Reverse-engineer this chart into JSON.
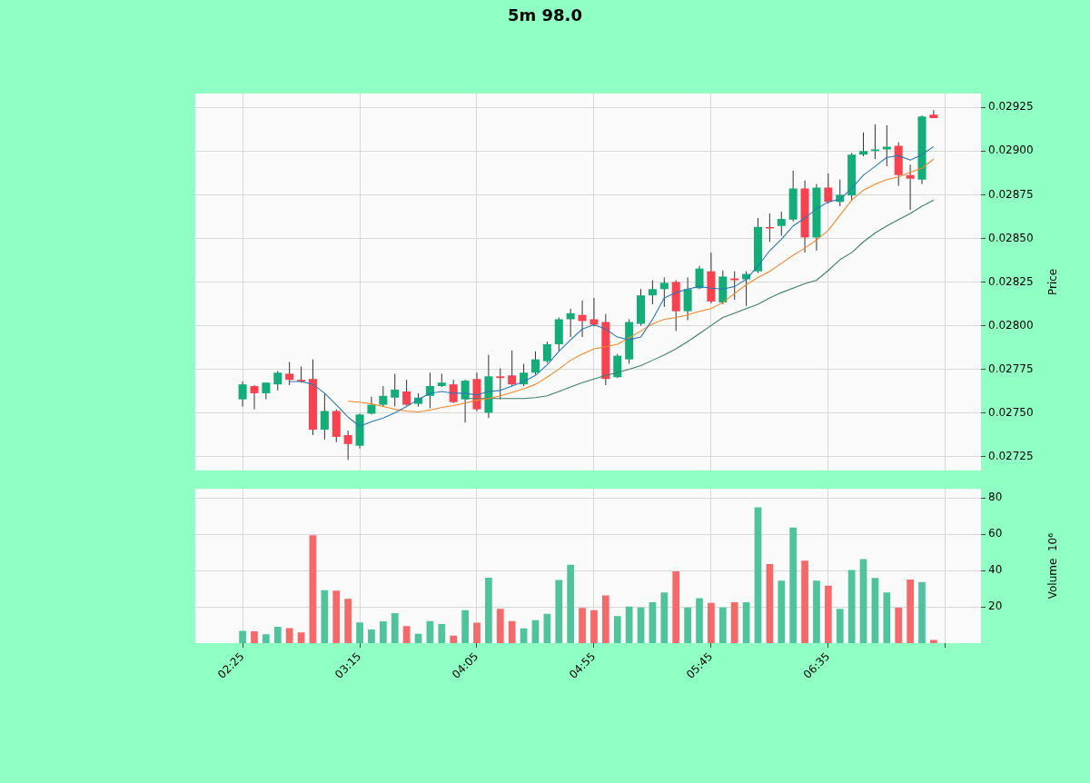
{
  "chart_data": [
    {
      "type": "candlestick",
      "title": "5m 98.0",
      "ylabel": "Price",
      "x": [
        2.4167,
        2.5,
        2.5833,
        2.6667,
        2.75,
        2.8333,
        2.9167,
        3,
        3.0833,
        3.1667,
        3.25,
        3.3333,
        3.4167,
        3.5,
        3.5833,
        3.6667,
        3.75,
        3.8333,
        3.9167,
        4,
        4.0833,
        4.1667,
        4.25,
        4.3333,
        4.4167,
        4.5,
        4.5833,
        4.6667,
        4.75,
        4.8333,
        4.9167,
        5,
        5.0833,
        5.1667,
        5.25,
        5.3333,
        5.4167,
        5.5,
        5.5833,
        5.6667,
        5.75,
        5.8333,
        5.9167,
        6,
        6.0833,
        6.1667,
        6.25,
        6.3333,
        6.4167,
        6.5,
        6.5833,
        6.6667,
        6.75,
        6.8333,
        6.9167,
        7,
        7.0833,
        7.1667,
        7.25,
        7.3333
      ],
      "ohlc": [
        [
          0.027577,
          0.027679,
          0.027536,
          0.027663
        ],
        [
          0.027653,
          0.027658,
          0.02752,
          0.027612
        ],
        [
          0.027612,
          0.027673,
          0.027577,
          0.027673
        ],
        [
          0.027663,
          0.02774,
          0.027628,
          0.02773
        ],
        [
          0.027724,
          0.027791,
          0.027658,
          0.027689
        ],
        [
          0.027689,
          0.027765,
          0.027673,
          0.027679
        ],
        [
          0.027694,
          0.027806,
          0.027372,
          0.027403
        ],
        [
          0.027403,
          0.027612,
          0.027347,
          0.02751
        ],
        [
          0.02751,
          0.02752,
          0.027332,
          0.027362
        ],
        [
          0.027372,
          0.027398,
          0.02723,
          0.027321
        ],
        [
          0.027311,
          0.027495,
          0.027296,
          0.02749
        ],
        [
          0.027495,
          0.027592,
          0.02749,
          0.027546
        ],
        [
          0.027546,
          0.027653,
          0.027536,
          0.027597
        ],
        [
          0.027587,
          0.027724,
          0.027536,
          0.027633
        ],
        [
          0.027622,
          0.027689,
          0.027541,
          0.027546
        ],
        [
          0.027551,
          0.027612,
          0.027536,
          0.027587
        ],
        [
          0.027597,
          0.02773,
          0.027526,
          0.027653
        ],
        [
          0.027653,
          0.027724,
          0.027648,
          0.027673
        ],
        [
          0.027663,
          0.027689,
          0.027556,
          0.027561
        ],
        [
          0.027577,
          0.027689,
          0.027444,
          0.027684
        ],
        [
          0.027694,
          0.02773,
          0.02751,
          0.02752
        ],
        [
          0.0275,
          0.027832,
          0.02747,
          0.027709
        ],
        [
          0.027709,
          0.027755,
          0.027577,
          0.027699
        ],
        [
          0.027714,
          0.027857,
          0.027653,
          0.027663
        ],
        [
          0.027663,
          0.027781,
          0.027653,
          0.02773
        ],
        [
          0.02773,
          0.027852,
          0.027719,
          0.027806
        ],
        [
          0.027796,
          0.027908,
          0.027786,
          0.027893
        ],
        [
          0.027893,
          0.028046,
          0.027852,
          0.028036
        ],
        [
          0.028036,
          0.028097,
          0.027934,
          0.028071
        ],
        [
          0.028061,
          0.028143,
          0.027934,
          0.028026
        ],
        [
          0.028036,
          0.028158,
          0.027995,
          0.028005
        ],
        [
          0.02802,
          0.028066,
          0.027658,
          0.027694
        ],
        [
          0.027704,
          0.027837,
          0.027699,
          0.027827
        ],
        [
          0.027806,
          0.028036,
          0.027781,
          0.02802
        ],
        [
          0.02801,
          0.028209,
          0.028,
          0.028173
        ],
        [
          0.028173,
          0.02826,
          0.028122,
          0.028209
        ],
        [
          0.028209,
          0.028276,
          0.028107,
          0.028245
        ],
        [
          0.02825,
          0.02826,
          0.027969,
          0.028082
        ],
        [
          0.028082,
          0.028276,
          0.028031,
          0.028209
        ],
        [
          0.028214,
          0.028342,
          0.028209,
          0.028327
        ],
        [
          0.028311,
          0.028418,
          0.028128,
          0.028138
        ],
        [
          0.028133,
          0.028316,
          0.028122,
          0.028281
        ],
        [
          0.02827,
          0.028311,
          0.028148,
          0.02826
        ],
        [
          0.028265,
          0.028311,
          0.028112,
          0.028296
        ],
        [
          0.028311,
          0.028617,
          0.028301,
          0.028566
        ],
        [
          0.028564,
          0.028643,
          0.02848,
          0.028559
        ],
        [
          0.028571,
          0.028653,
          0.028515,
          0.028612
        ],
        [
          0.028607,
          0.028888,
          0.028597,
          0.028786
        ],
        [
          0.028786,
          0.028832,
          0.028418,
          0.028505
        ],
        [
          0.028505,
          0.028811,
          0.028429,
          0.028791
        ],
        [
          0.028791,
          0.028872,
          0.028699,
          0.028709
        ],
        [
          0.028709,
          0.028837,
          0.028684,
          0.02875
        ],
        [
          0.028745,
          0.02899,
          0.028719,
          0.02898
        ],
        [
          0.02898,
          0.029107,
          0.02897,
          0.029
        ],
        [
          0.029,
          0.029153,
          0.028954,
          0.02901
        ],
        [
          0.02901,
          0.029148,
          0.028913,
          0.029026
        ],
        [
          0.029031,
          0.029051,
          0.028801,
          0.028862
        ],
        [
          0.028862,
          0.028923,
          0.028663,
          0.028842
        ],
        [
          0.028837,
          0.029204,
          0.028811,
          0.029199
        ],
        [
          0.029209,
          0.029235,
          0.029189,
          0.029189
        ]
      ],
      "colors": [
        "#13ad7a",
        "#f8424f",
        "#13ad7a",
        "#13ad7a",
        "#f8424f",
        "#f8424f",
        "#f8424f",
        "#13ad7a",
        "#f8424f",
        "#f8424f",
        "#13ad7a",
        "#13ad7a",
        "#13ad7a",
        "#13ad7a",
        "#f8424f",
        "#13ad7a",
        "#13ad7a",
        "#13ad7a",
        "#f8424f",
        "#13ad7a",
        "#f8424f",
        "#13ad7a",
        "#f8424f",
        "#f8424f",
        "#13ad7a",
        "#13ad7a",
        "#13ad7a",
        "#13ad7a",
        "#13ad7a",
        "#f8424f",
        "#f8424f",
        "#f8424f",
        "#13ad7a",
        "#13ad7a",
        "#13ad7a",
        "#13ad7a",
        "#13ad7a",
        "#f8424f",
        "#13ad7a",
        "#13ad7a",
        "#f8424f",
        "#13ad7a",
        "#f8424f",
        "#13ad7a",
        "#13ad7a",
        "#f8424f",
        "#13ad7a",
        "#13ad7a",
        "#f8424f",
        "#13ad7a",
        "#f8424f",
        "#13ad7a",
        "#13ad7a",
        "#13ad7a",
        "#13ad7a",
        "#13ad7a",
        "#f8424f",
        "#f8424f",
        "#13ad7a",
        "#f8424f"
      ],
      "series": [
        {
          "type": "line",
          "color": "#2b78b5",
          "values": [
            null,
            null,
            null,
            null,
            0.027679,
            0.027679,
            0.027663,
            0.027612,
            0.027546,
            0.027475,
            0.027423,
            0.027449,
            0.02747,
            0.0275,
            0.027536,
            0.027577,
            0.027612,
            0.027622,
            0.027612,
            0.027612,
            0.027602,
            0.027622,
            0.027628,
            0.027653,
            0.027679,
            0.027714,
            0.027775,
            0.027852,
            0.027918,
            0.02798,
            0.028005,
            0.02798,
            0.027934,
            0.027918,
            0.027934,
            0.028036,
            0.028158,
            0.028189,
            0.028209,
            0.028224,
            0.028214,
            0.028209,
            0.028224,
            0.028265,
            0.028342,
            0.028429,
            0.028495,
            0.028571,
            0.028617,
            0.028668,
            0.028709,
            0.028724,
            0.028786,
            0.028862,
            0.028913,
            0.028964,
            0.028974,
            0.028949,
            0.02898,
            0.029026
          ]
        },
        {
          "type": "line",
          "color": "#f5862a",
          "values": [
            null,
            null,
            null,
            null,
            null,
            null,
            null,
            null,
            null,
            0.027566,
            0.027561,
            0.027551,
            0.027536,
            0.02752,
            0.02751,
            0.027505,
            0.027515,
            0.027531,
            0.027541,
            0.027556,
            0.027572,
            0.027582,
            0.027597,
            0.027617,
            0.027638,
            0.027663,
            0.027704,
            0.02775,
            0.027801,
            0.027837,
            0.027867,
            0.027878,
            0.027893,
            0.027929,
            0.027969,
            0.02801,
            0.028036,
            0.028046,
            0.028061,
            0.028082,
            0.028097,
            0.028133,
            0.028184,
            0.028235,
            0.028276,
            0.028311,
            0.028357,
            0.028403,
            0.028444,
            0.02849,
            0.028546,
            0.028633,
            0.028719,
            0.028776,
            0.028811,
            0.028837,
            0.028852,
            0.028878,
            0.028903,
            0.028954
          ]
        },
        {
          "type": "line",
          "color": "#3d7f6c",
          "values": [
            null,
            null,
            null,
            null,
            null,
            null,
            null,
            null,
            null,
            null,
            null,
            null,
            null,
            null,
            null,
            null,
            null,
            null,
            null,
            0.027582,
            0.027582,
            0.027582,
            0.027582,
            0.027582,
            0.027582,
            0.027587,
            0.027597,
            0.027622,
            0.027648,
            0.027673,
            0.027694,
            0.027714,
            0.02773,
            0.02775,
            0.02777,
            0.027801,
            0.027832,
            0.027867,
            0.027908,
            0.027954,
            0.028,
            0.028046,
            0.028071,
            0.028097,
            0.028122,
            0.028158,
            0.028189,
            0.028214,
            0.02824,
            0.02826,
            0.028316,
            0.028378,
            0.028418,
            0.02848,
            0.028531,
            0.028571,
            0.028607,
            0.028643,
            0.028684,
            0.028719
          ]
        }
      ],
      "xlim": [
        2.08,
        7.67
      ],
      "xticks": [
        2.4167,
        3.25,
        4.0833,
        4.9167,
        5.75,
        6.5833,
        7.4167
      ],
      "ylim": [
        0.02717,
        0.02933
      ],
      "yticks": [
        0.02725,
        {
          "value": 0.0275,
          "label": "0.02750"
        },
        0.02775,
        {
          "value": 0.028,
          "label": "0.02800"
        },
        0.02825,
        {
          "value": 0.0285,
          "label": "0.02850"
        },
        0.02875,
        {
          "value": 0.029,
          "label": "0.02900"
        },
        0.02925
      ],
      "grid": true,
      "tick_labels": "y"
    },
    {
      "type": "bar",
      "ylabel": "Volume  10⁶",
      "x": [
        2.4167,
        2.5,
        2.5833,
        2.6667,
        2.75,
        2.8333,
        2.9167,
        3,
        3.0833,
        3.1667,
        3.25,
        3.3333,
        3.4167,
        3.5,
        3.5833,
        3.6667,
        3.75,
        3.8333,
        3.9167,
        4,
        4.0833,
        4.1667,
        4.25,
        4.3333,
        4.4167,
        4.5,
        4.5833,
        4.6667,
        4.75,
        4.8333,
        4.9167,
        5,
        5.0833,
        5.1667,
        5.25,
        5.3333,
        5.4167,
        5.5,
        5.5833,
        5.6667,
        5.75,
        5.8333,
        5.9167,
        6,
        6.0833,
        6.1667,
        6.25,
        6.3333,
        6.4167,
        6.5,
        6.5833,
        6.6667,
        6.75,
        6.8333,
        6.9167,
        7,
        7.0833,
        7.1667,
        7.25,
        7.3333
      ],
      "values": [
        6.7,
        6.5,
        4.9,
        9.0,
        8.2,
        5.9,
        59.4,
        29.2,
        28.9,
        24.4,
        11.4,
        7.5,
        12.0,
        16.5,
        9.4,
        5.1,
        12.2,
        10.5,
        4.1,
        18.1,
        11.3,
        36.0,
        18.9,
        12.2,
        8.1,
        12.7,
        16.2,
        34.8,
        43.2,
        19.4,
        18.1,
        26.3,
        14.9,
        20.2,
        19.7,
        22.5,
        27.9,
        39.5,
        19.7,
        24.8,
        22.1,
        19.7,
        22.5,
        22.5,
        74.9,
        43.5,
        34.4,
        63.7,
        45.4,
        34.4,
        31.6,
        18.9,
        40.3,
        46.3,
        35.9,
        27.9,
        19.5,
        35.1,
        33.7,
        1.8
      ],
      "colors": [
        "#4fc39c",
        "#f46a6a",
        "#4fc39c",
        "#4fc39c",
        "#f46a6a",
        "#f46a6a",
        "#f46a6a",
        "#4fc39c",
        "#f46a6a",
        "#f46a6a",
        "#4fc39c",
        "#4fc39c",
        "#4fc39c",
        "#4fc39c",
        "#f46a6a",
        "#4fc39c",
        "#4fc39c",
        "#4fc39c",
        "#f46a6a",
        "#4fc39c",
        "#f46a6a",
        "#4fc39c",
        "#f46a6a",
        "#f46a6a",
        "#4fc39c",
        "#4fc39c",
        "#4fc39c",
        "#4fc39c",
        "#4fc39c",
        "#f46a6a",
        "#f46a6a",
        "#f46a6a",
        "#4fc39c",
        "#4fc39c",
        "#4fc39c",
        "#4fc39c",
        "#4fc39c",
        "#f46a6a",
        "#4fc39c",
        "#4fc39c",
        "#f46a6a",
        "#4fc39c",
        "#f46a6a",
        "#4fc39c",
        "#4fc39c",
        "#f46a6a",
        "#4fc39c",
        "#4fc39c",
        "#f46a6a",
        "#4fc39c",
        "#f46a6a",
        "#4fc39c",
        "#4fc39c",
        "#4fc39c",
        "#4fc39c",
        "#4fc39c",
        "#f46a6a",
        "#f46a6a",
        "#4fc39c",
        "#f46a6a"
      ],
      "xlim": [
        2.08,
        7.67
      ],
      "xticks": [
        {
          "value": 2.4167,
          "label": "02:25"
        },
        {
          "value": 3.25,
          "label": "03:15"
        },
        {
          "value": 4.0833,
          "label": "04:05"
        },
        {
          "value": 4.9167,
          "label": "04:55"
        },
        {
          "value": 5.75,
          "label": "05:45"
        },
        {
          "value": 6.5833,
          "label": "06:35"
        },
        {
          "value": 7.4167,
          "label": null
        }
      ],
      "ylim": [
        0,
        85
      ],
      "yticks": [
        20,
        40,
        60,
        80
      ],
      "grid": true
    }
  ]
}
